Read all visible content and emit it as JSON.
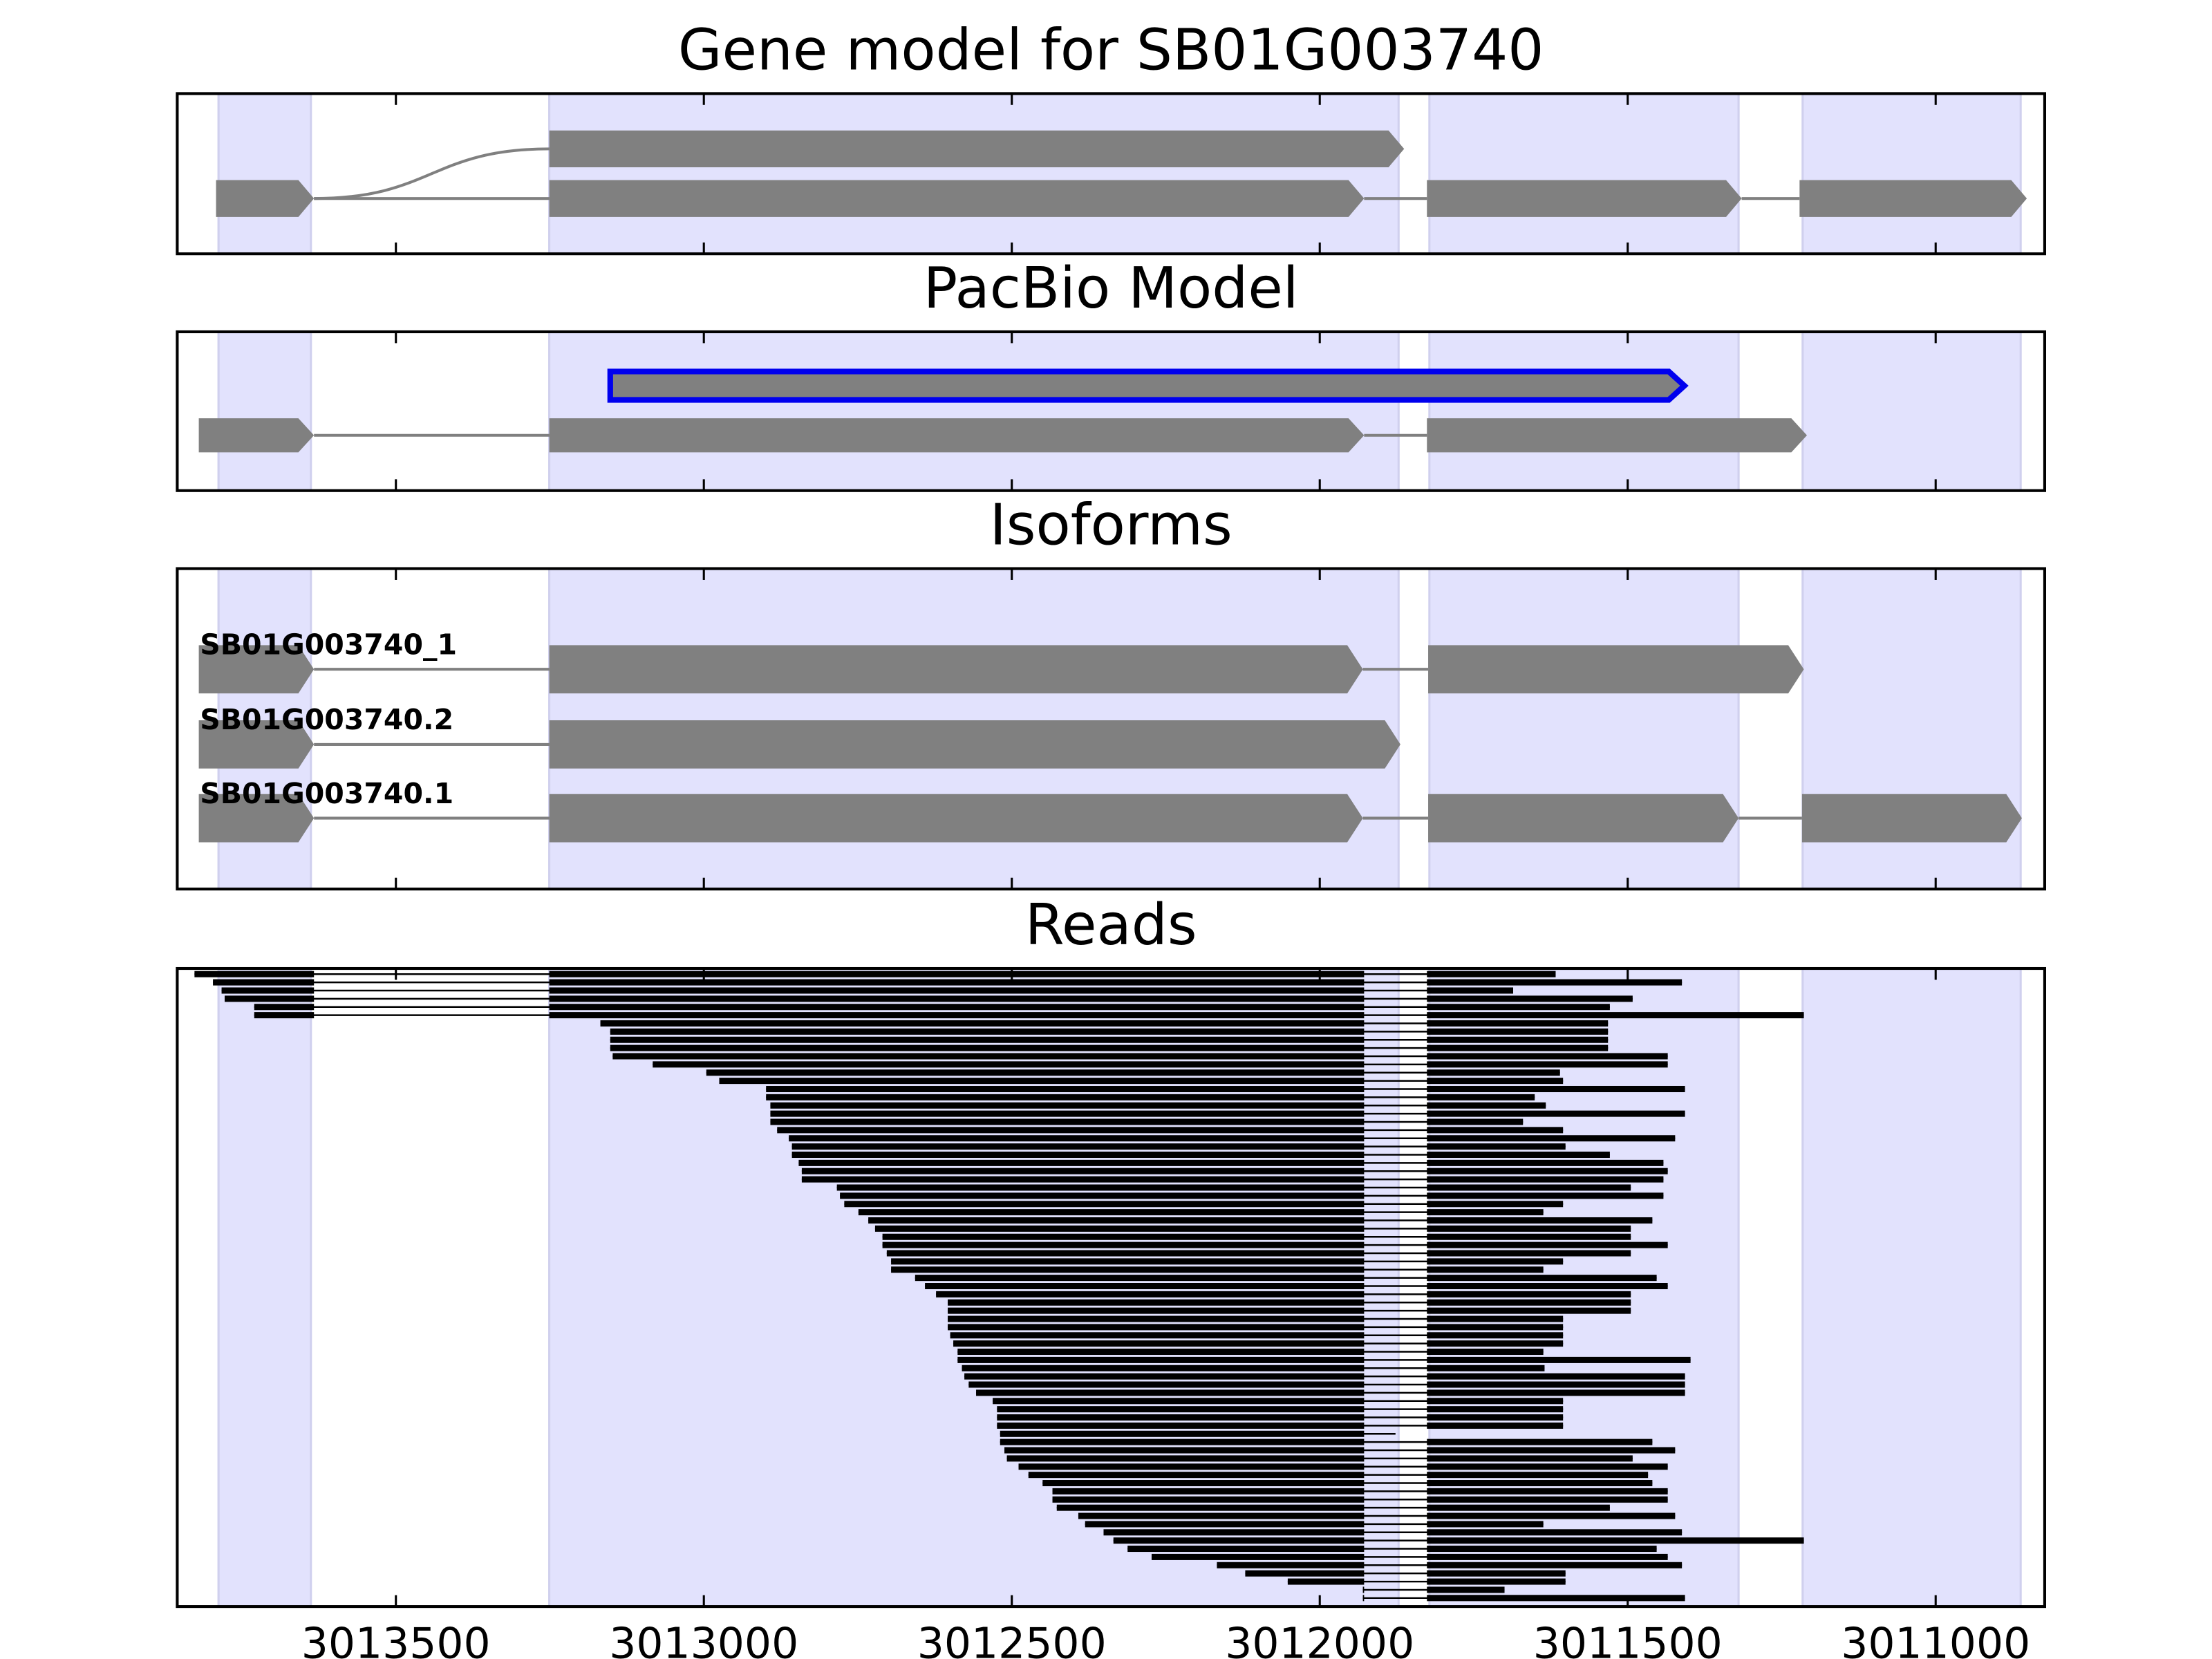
{
  "chart_data": {
    "type": "gene_tracks",
    "xlim": [
      3013855,
      3010823
    ],
    "xticks": [
      3013500,
      3013000,
      3012500,
      3012000,
      3011500,
      3011000
    ],
    "exon_regions": [
      [
        3013788,
        3013638
      ],
      [
        3013251,
        3011872
      ],
      [
        3011822,
        3011320
      ],
      [
        3011216,
        3010862
      ]
    ],
    "panels": [
      {
        "title": "Gene model for SB01G003740",
        "transcripts": [
          {
            "exons": [
              [
                3013251,
                3011863
              ]
            ]
          },
          {
            "exons": [
              [
                3013792,
                3013633
              ],
              [
                3013251,
                3011928
              ],
              [
                3011826,
                3011315
              ],
              [
                3011221,
                3010852
              ]
            ]
          }
        ]
      },
      {
        "title": "PacBio Model",
        "transcripts": [
          {
            "exons": [
              [
                3013152,
                3011408
              ]
            ],
            "outline_color": "#0000ee"
          },
          {
            "exons": [
              [
                3013820,
                3013633
              ],
              [
                3013251,
                3011928
              ],
              [
                3011826,
                3011209
              ]
            ]
          }
        ]
      },
      {
        "title": "Isoforms",
        "transcripts": [
          {
            "name": "SB01G003740_1",
            "exons": [
              [
                3013820,
                3013633
              ],
              [
                3013251,
                3011930
              ],
              [
                3011824,
                3011214
              ]
            ]
          },
          {
            "name": "SB01G003740.2",
            "exons": [
              [
                3013820,
                3013633
              ],
              [
                3013251,
                3011869
              ]
            ]
          },
          {
            "name": "SB01G003740.1",
            "exons": [
              [
                3013820,
                3013633
              ],
              [
                3013251,
                3011930
              ],
              [
                3011824,
                3011320
              ],
              [
                3011217,
                3010860
              ]
            ]
          }
        ]
      },
      {
        "title": "Reads",
        "introns": [
          [
            3013633,
            3013251
          ],
          [
            3011928,
            3011826
          ]
        ],
        "reads": [
          [
            3013827,
            3011617
          ],
          [
            3013797,
            3011412
          ],
          [
            3013783,
            3011686
          ],
          [
            3013778,
            3011492
          ],
          [
            3013730,
            3011529
          ],
          [
            3013730,
            3011214
          ],
          [
            3013168,
            3011532
          ],
          [
            3013152,
            3011532
          ],
          [
            3013152,
            3011532
          ],
          [
            3013152,
            3011532
          ],
          [
            3013148,
            3011435
          ],
          [
            3013083,
            3011435
          ],
          [
            3012996,
            3011610
          ],
          [
            3012975,
            3011605
          ],
          [
            3012899,
            3011407
          ],
          [
            3012899,
            3011651
          ],
          [
            3012892,
            3011633
          ],
          [
            3012892,
            3011407
          ],
          [
            3012892,
            3011670
          ],
          [
            3012881,
            3011605
          ],
          [
            3012862,
            3011423
          ],
          [
            3012857,
            3011601
          ],
          [
            3012857,
            3011529
          ],
          [
            3012846,
            3011442
          ],
          [
            3012841,
            3011435
          ],
          [
            3012841,
            3011442
          ],
          [
            3012784,
            3011495
          ],
          [
            3012779,
            3011442
          ],
          [
            3012772,
            3011605
          ],
          [
            3012749,
            3011637
          ],
          [
            3012733,
            3011460
          ],
          [
            3012722,
            3011495
          ],
          [
            3012710,
            3011495
          ],
          [
            3012710,
            3011435
          ],
          [
            3012703,
            3011495
          ],
          [
            3012696,
            3011605
          ],
          [
            3012696,
            3011637
          ],
          [
            3012657,
            3011453
          ],
          [
            3012641,
            3011435
          ],
          [
            3012623,
            3011495
          ],
          [
            3012604,
            3011495
          ],
          [
            3012604,
            3011495
          ],
          [
            3012604,
            3011605
          ],
          [
            3012604,
            3011605
          ],
          [
            3012600,
            3011605
          ],
          [
            3012595,
            3011605
          ],
          [
            3012588,
            3011637
          ],
          [
            3012588,
            3011398
          ],
          [
            3012581,
            3011635
          ],
          [
            3012577,
            3011407
          ],
          [
            3012570,
            3011407
          ],
          [
            3012558,
            3011407
          ],
          [
            3012531,
            3011605
          ],
          [
            3012524,
            3011605
          ],
          [
            3012524,
            3011605
          ],
          [
            3012524,
            3011605
          ],
          [
            3012519,
            3011877
          ],
          [
            3012519,
            3011460
          ],
          [
            3012512,
            3011423
          ],
          [
            3012508,
            3011492
          ],
          [
            3012489,
            3011435
          ],
          [
            3012473,
            3011467
          ],
          [
            3012450,
            3011460
          ],
          [
            3012434,
            3011435
          ],
          [
            3012434,
            3011435
          ],
          [
            3012427,
            3011529
          ],
          [
            3012392,
            3011423
          ],
          [
            3012381,
            3011637
          ],
          [
            3012351,
            3011412
          ],
          [
            3012335,
            3011214
          ],
          [
            3012312,
            3011453
          ],
          [
            3012273,
            3011435
          ],
          [
            3012167,
            3011412
          ],
          [
            3012121,
            3011601
          ],
          [
            3012052,
            3011601
          ],
          [
            3011930,
            3011700
          ],
          [
            3011930,
            3011407
          ]
        ]
      }
    ]
  }
}
